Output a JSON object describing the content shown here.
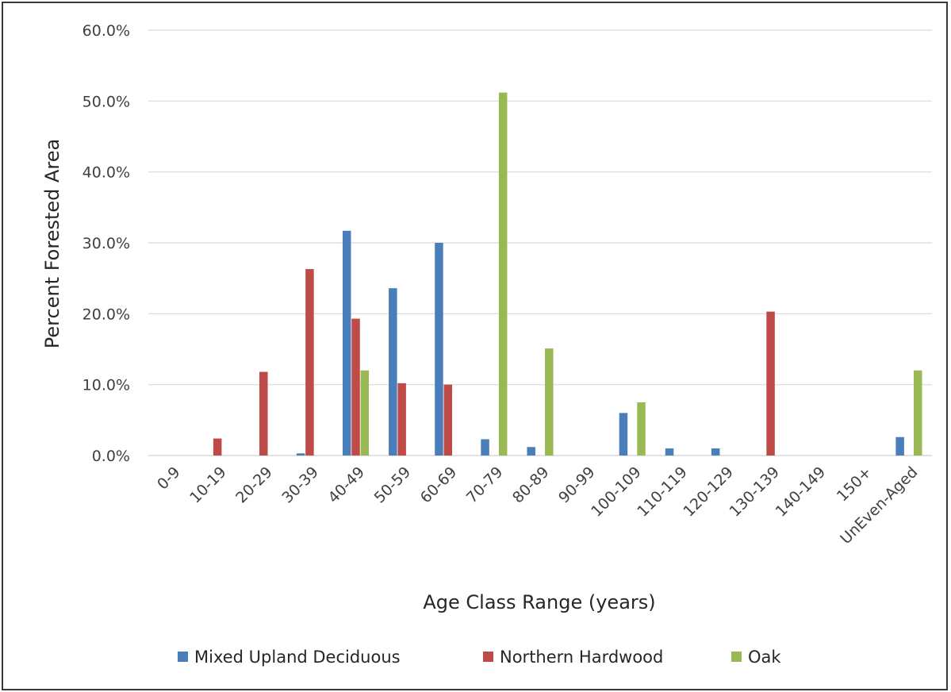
{
  "chart_data": {
    "type": "bar",
    "title": "",
    "xlabel": "Age Class Range (years)",
    "ylabel": "Percent Forested Area",
    "ylim": [
      0,
      60
    ],
    "yticks": [
      "0.0%",
      "10.0%",
      "20.0%",
      "30.0%",
      "40.0%",
      "50.0%",
      "60.0%"
    ],
    "grid": "horizontal",
    "legend_position": "bottom",
    "categories": [
      "0-9",
      "10-19",
      "20-29",
      "30-39",
      "40-49",
      "50-59",
      "60-69",
      "70-79",
      "80-89",
      "90-99",
      "100-109",
      "110-119",
      "120-129",
      "130-139",
      "140-149",
      "150+",
      "UnEven-Aged"
    ],
    "series": [
      {
        "name": "Mixed Upland Deciduous",
        "color": "#4a7ebb",
        "values": [
          0,
          0,
          0,
          0.3,
          31.7,
          23.6,
          30.0,
          2.3,
          1.2,
          0,
          6.0,
          1.0,
          1.0,
          0,
          0,
          0,
          2.6
        ]
      },
      {
        "name": "Northern Hardwood",
        "color": "#be4b48",
        "values": [
          0,
          2.4,
          11.8,
          26.3,
          19.3,
          10.2,
          10.0,
          0,
          0,
          0,
          0,
          0,
          0,
          20.3,
          0,
          0,
          0
        ]
      },
      {
        "name": "Oak",
        "color": "#98b954",
        "values": [
          0,
          0,
          0,
          0,
          12.0,
          0,
          0,
          51.2,
          15.1,
          0,
          7.5,
          0,
          0,
          0,
          0,
          0,
          12.0
        ]
      }
    ]
  }
}
